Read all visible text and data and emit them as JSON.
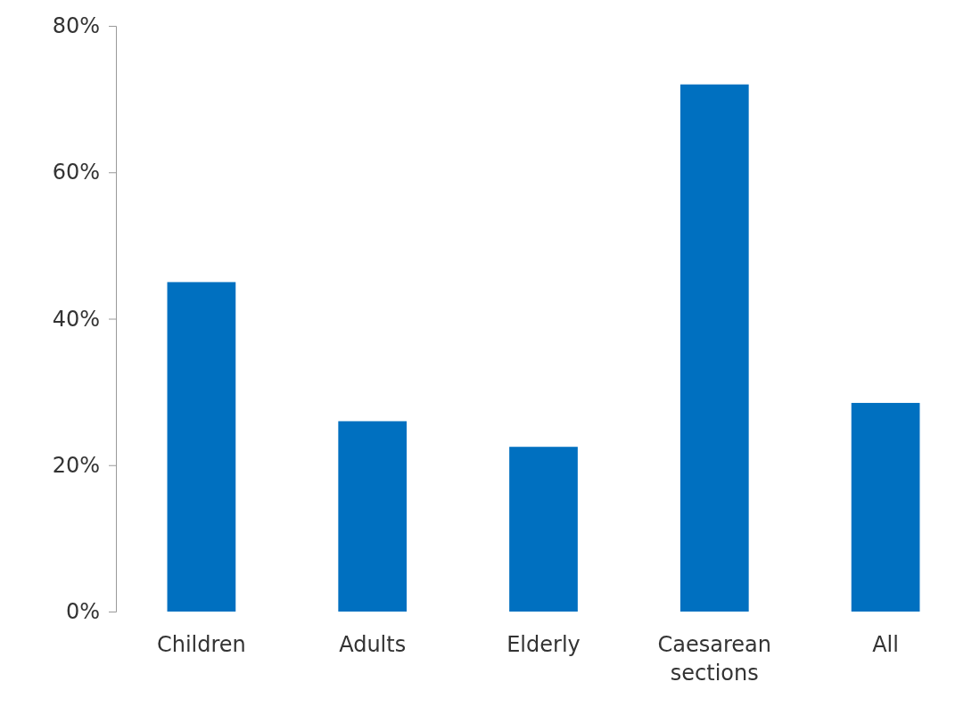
{
  "chart_data": {
    "type": "bar",
    "categories": [
      "Children",
      "Adults",
      "Elderly",
      "Caesarean sections",
      "All"
    ],
    "values": [
      45,
      26,
      22.5,
      72,
      28.5
    ],
    "color": "#0070c0",
    "ylim": [
      0,
      80
    ],
    "yticks": [
      {
        "value": 0,
        "label": "0%"
      },
      {
        "value": 20,
        "label": "20%"
      },
      {
        "value": 40,
        "label": "40%"
      },
      {
        "value": 60,
        "label": "60%"
      },
      {
        "value": 80,
        "label": "80%"
      }
    ],
    "grid": false
  }
}
